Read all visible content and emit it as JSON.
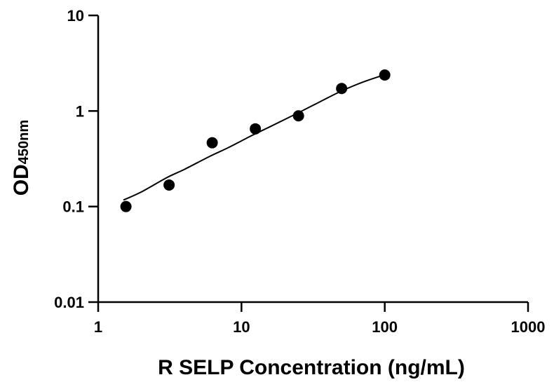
{
  "chart_data": {
    "type": "scatter",
    "title": "",
    "xlabel": "R SELP Concentration (ng/mL)",
    "ylabel_main": "OD",
    "ylabel_sub": "450nm",
    "xscale": "log",
    "yscale": "log",
    "xlim": [
      1,
      1000
    ],
    "ylim": [
      0.01,
      10
    ],
    "xticks": [
      "1",
      "10",
      "100",
      "1000"
    ],
    "yticks": [
      "0.01",
      "0.1",
      "1",
      "10"
    ],
    "grid": false,
    "legend": "none",
    "series": [
      {
        "x": [
          1.5625,
          3.125,
          6.25,
          12.5,
          25,
          50,
          100
        ],
        "y": [
          0.1,
          0.168,
          0.465,
          0.65,
          0.89,
          1.72,
          2.38
        ]
      }
    ],
    "fit_curve": {
      "x": [
        1.5,
        2,
        3,
        4,
        6,
        8,
        12,
        16,
        25,
        35,
        50,
        70,
        100
      ],
      "y": [
        0.117,
        0.142,
        0.2,
        0.245,
        0.335,
        0.41,
        0.56,
        0.69,
        0.96,
        1.24,
        1.62,
        2.0,
        2.4
      ]
    },
    "colors": {
      "points": "#000000",
      "line": "#000000",
      "axes": "#000000"
    }
  }
}
